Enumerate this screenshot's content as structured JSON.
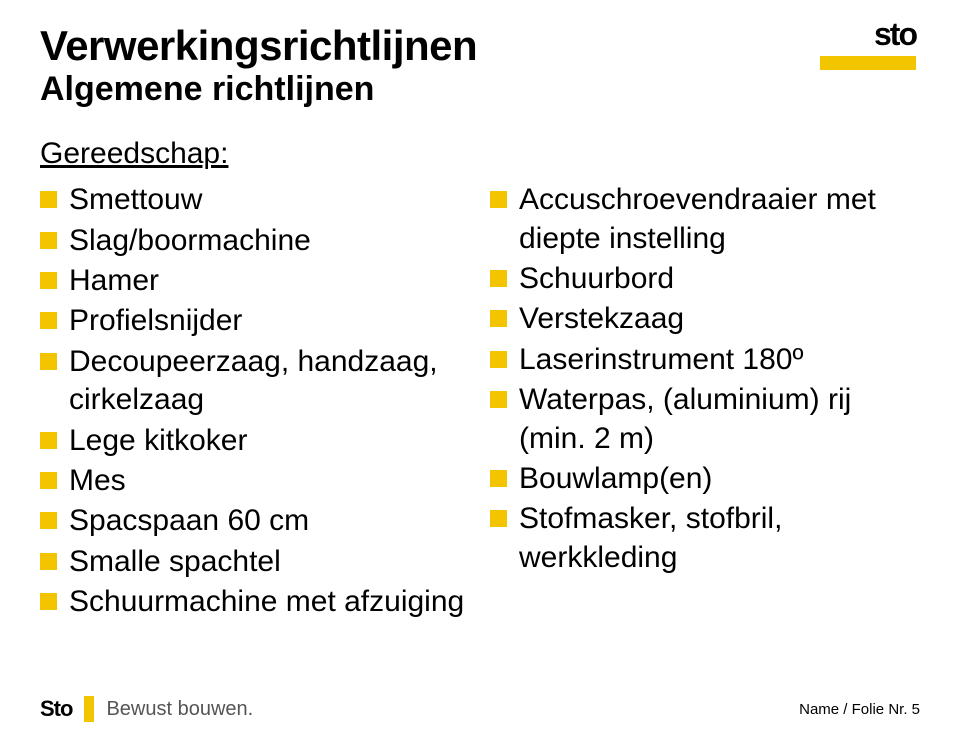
{
  "colors": {
    "accent": "#f2c500",
    "background": "#ffffff",
    "text": "#000000",
    "muted": "#555555"
  },
  "typography": {
    "title_fontsize": 42,
    "subtitle_fontsize": 34,
    "heading_fontsize": 30,
    "body_fontsize": 30,
    "footer_tag_fontsize": 20,
    "footer_right_fontsize": 15
  },
  "logo": {
    "brand": "sto",
    "bar_color": "#f2c500"
  },
  "title": "Verwerkingsrichtlijnen",
  "subtitle": "Algemene richtlijnen",
  "section_heading": "Gereedschap:",
  "left_list": [
    "Smettouw",
    "Slag/boormachine",
    "Hamer",
    "Profielsnijder",
    "Decoupeerzaag, handzaag, cirkelzaag",
    "Lege kitkoker",
    "Mes",
    "Spacspaan 60 cm",
    "Smalle spachtel",
    "Schuurmachine met afzuiging"
  ],
  "right_list": [
    "Accuschroevendraaier met diepte instelling",
    "Schuurbord",
    "Verstekzaag",
    "Laserinstrument 180º",
    "Waterpas, (aluminium) rij (min. 2 m)",
    "Bouwlamp(en)",
    "Stofmasker, stofbril, werkkleding"
  ],
  "footer": {
    "brand": "Sto",
    "tagline": "Bewust bouwen.",
    "page_ref": "Name / Folie Nr. 5"
  }
}
